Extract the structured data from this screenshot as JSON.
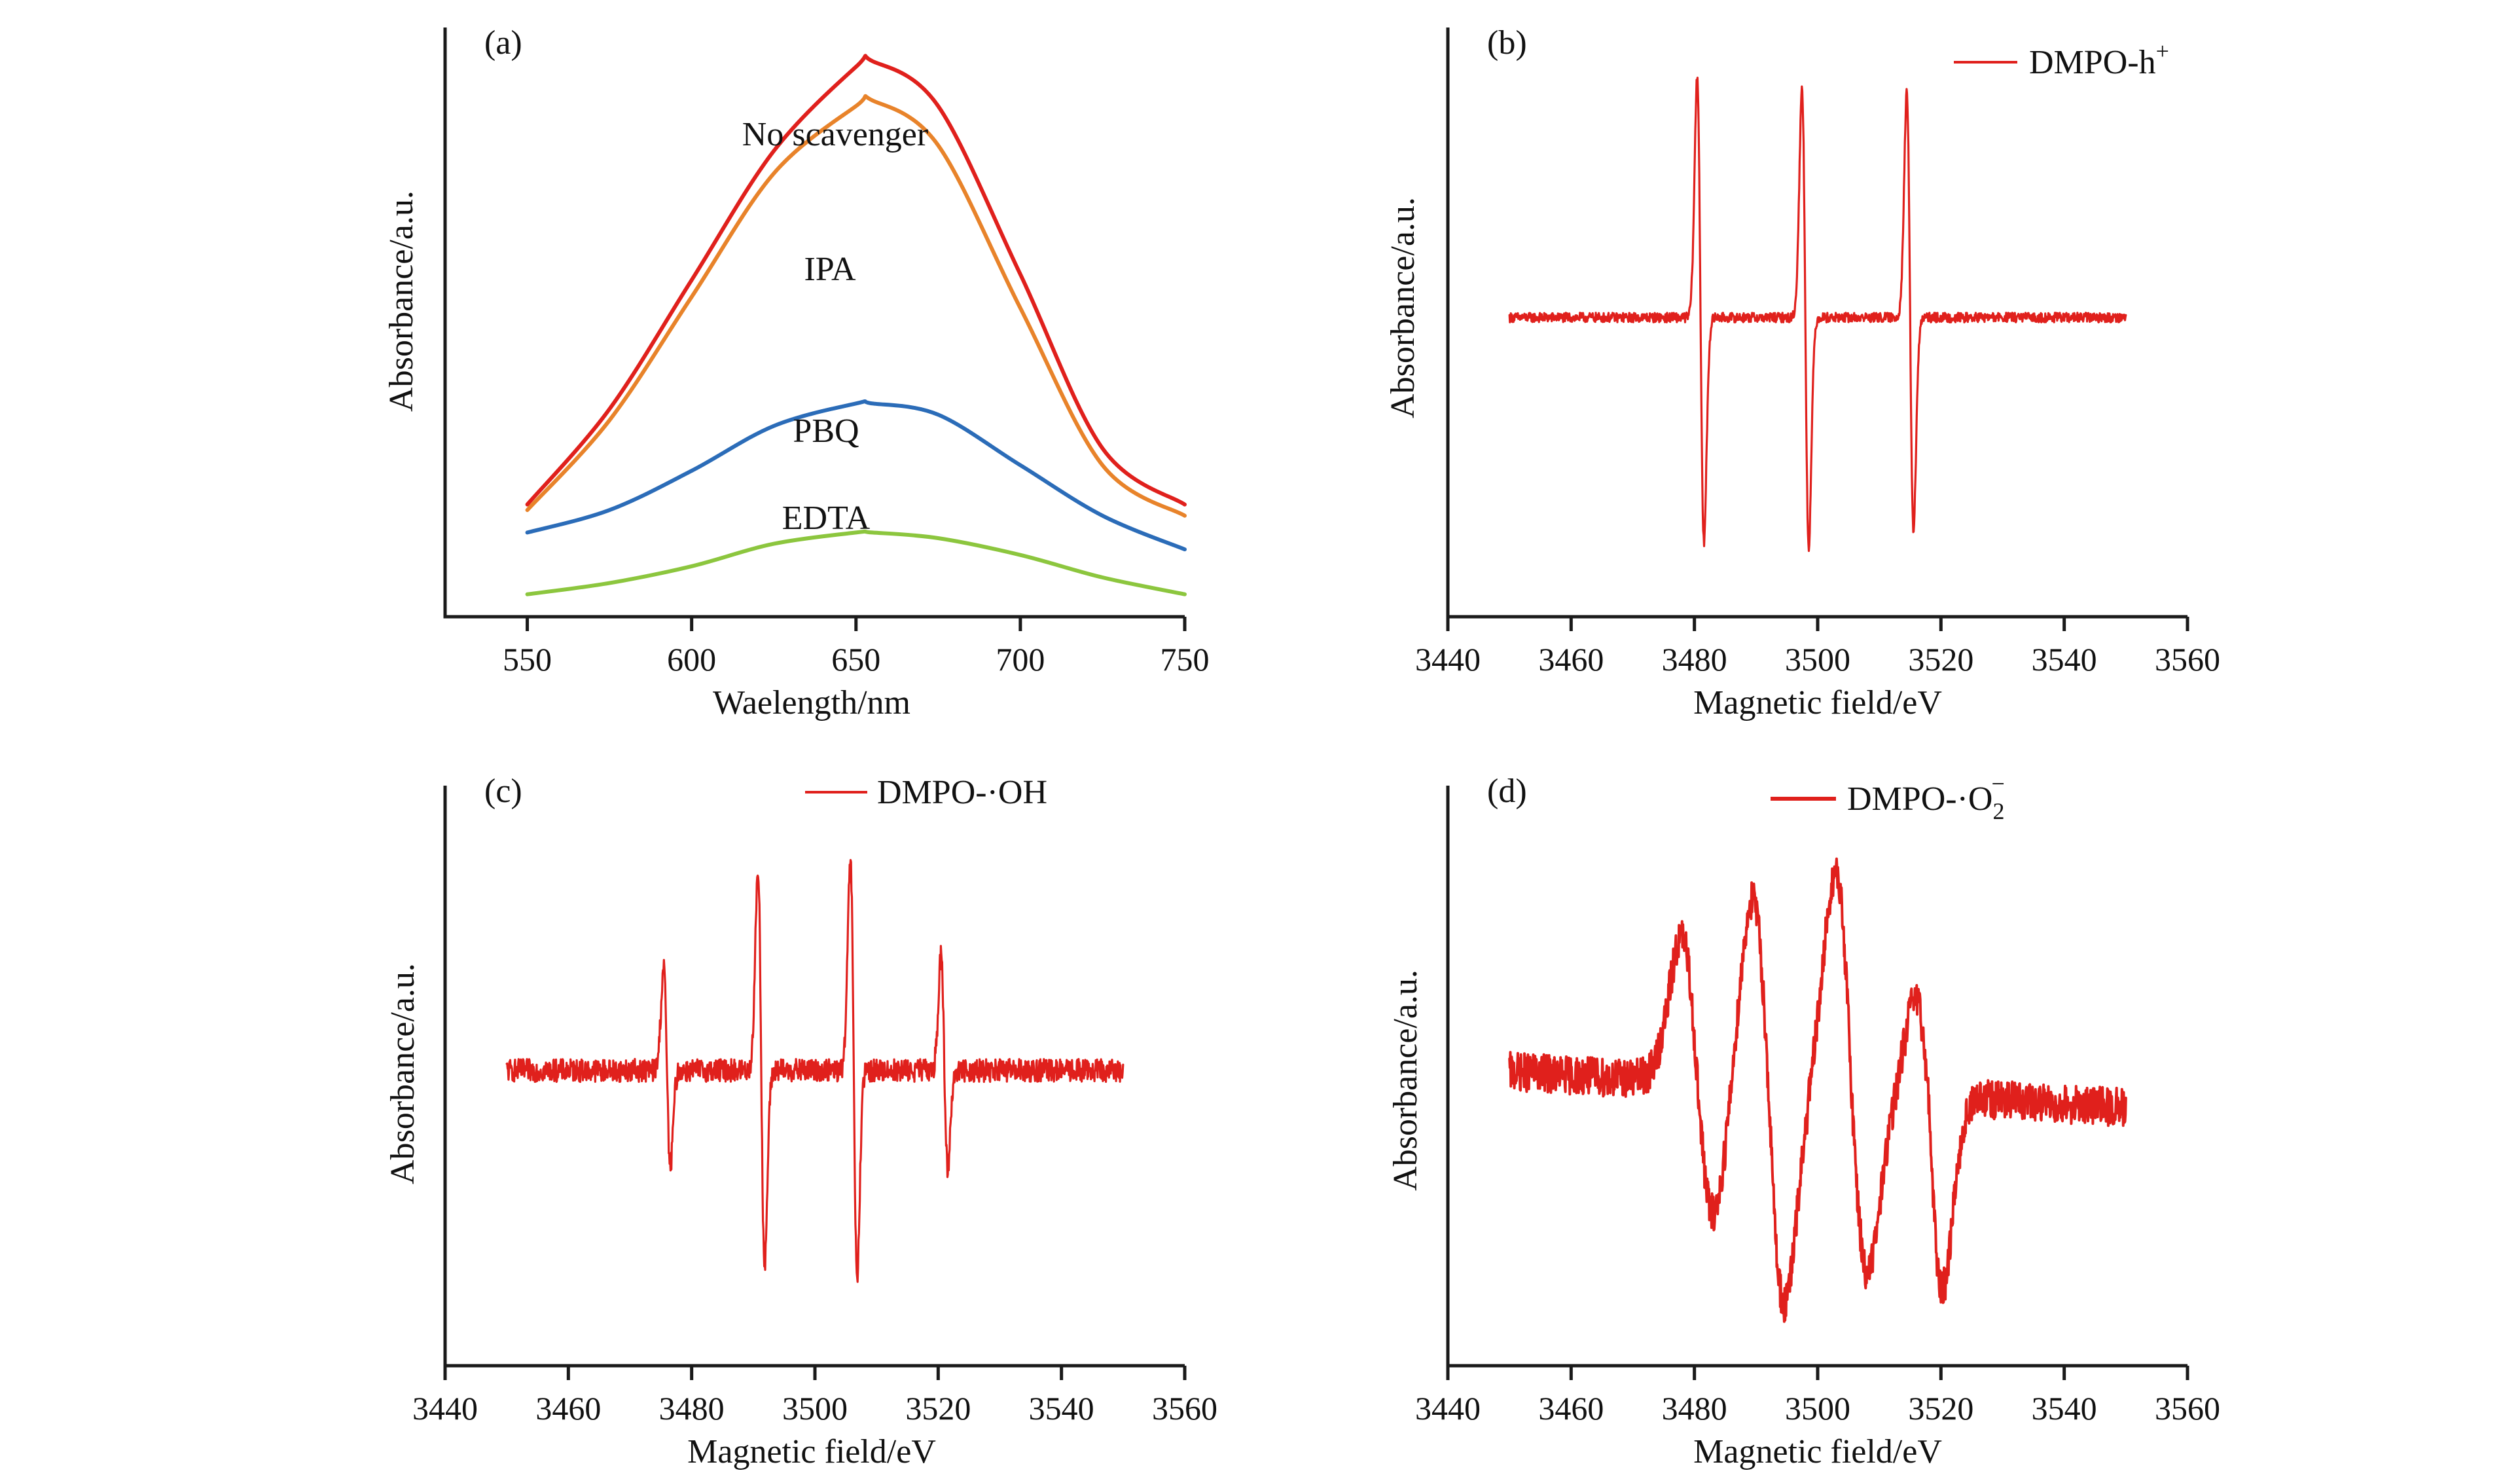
{
  "chart_data": [
    {
      "type": "line",
      "panel_label": "(a)",
      "xlabel": "Waelength/nm",
      "ylabel": "Absorbance/a.u.",
      "xlim": [
        525,
        750
      ],
      "ylim": [
        0,
        1.05
      ],
      "xticks": [
        550,
        600,
        650,
        700,
        750
      ],
      "grid": false,
      "series": [
        {
          "name": "No scavenger",
          "color": "#e0201c",
          "x": [
            550,
            575,
            600,
            625,
            650,
            655,
            675,
            700,
            725,
            750
          ],
          "y": [
            0.2,
            0.37,
            0.6,
            0.83,
            0.98,
            0.99,
            0.91,
            0.61,
            0.3,
            0.2
          ]
        },
        {
          "name": "IPA",
          "color": "#e8832a",
          "x": [
            550,
            575,
            600,
            625,
            650,
            655,
            675,
            700,
            725,
            750
          ],
          "y": [
            0.19,
            0.35,
            0.57,
            0.79,
            0.91,
            0.92,
            0.84,
            0.55,
            0.27,
            0.18
          ]
        },
        {
          "name": "PBQ",
          "color": "#2b6cb8",
          "x": [
            550,
            575,
            600,
            625,
            650,
            655,
            675,
            700,
            725,
            750
          ],
          "y": [
            0.15,
            0.19,
            0.26,
            0.34,
            0.38,
            0.38,
            0.36,
            0.27,
            0.18,
            0.12
          ]
        },
        {
          "name": "EDTA",
          "color": "#8cc63e",
          "x": [
            550,
            575,
            600,
            625,
            650,
            655,
            675,
            700,
            725,
            750
          ],
          "y": [
            0.04,
            0.06,
            0.09,
            0.13,
            0.15,
            0.15,
            0.14,
            0.11,
            0.07,
            0.04
          ]
        }
      ]
    },
    {
      "type": "line",
      "panel_label": "(b)",
      "xlabel": "Magnetic field/eV",
      "ylabel": "Absorbance/a.u.",
      "xlim": [
        3440,
        3560
      ],
      "ylim": [
        -1.1,
        1.1
      ],
      "xticks": [
        3440,
        3460,
        3480,
        3500,
        3520,
        3540,
        3560
      ],
      "grid": false,
      "series": [
        {
          "name": "DMPO-h+",
          "color": "#e0201c",
          "x_range": [
            3450,
            3550
          ],
          "baseline": 0,
          "noise": 0.02,
          "peaks": [
            {
              "center": 3481.0,
              "max": 1.0,
              "min": -0.93,
              "width": 0.55
            },
            {
              "center": 3498.0,
              "max": 0.95,
              "min": -0.95,
              "width": 0.55
            },
            {
              "center": 3515.0,
              "max": 0.93,
              "min": -0.88,
              "width": 0.55
            }
          ]
        }
      ]
    },
    {
      "type": "line",
      "panel_label": "(c)",
      "xlabel": "Magnetic field/eV",
      "ylabel": "Absorbance/a.u.",
      "xlim": [
        3440,
        3560
      ],
      "ylim": [
        -1.1,
        1.1
      ],
      "xticks": [
        3440,
        3460,
        3480,
        3500,
        3520,
        3540,
        3560
      ],
      "grid": false,
      "series": [
        {
          "name": "DMPO-·OH",
          "color": "#e0201c",
          "x_range": [
            3450,
            3550
          ],
          "baseline": 0,
          "noise": 0.05,
          "peaks": [
            {
              "center": 3476.0,
              "max": 0.45,
              "min": -0.42,
              "width": 0.55
            },
            {
              "center": 3491.3,
              "max": 0.88,
              "min": -0.86,
              "width": 0.55
            },
            {
              "center": 3506.3,
              "max": 0.92,
              "min": -0.9,
              "width": 0.55
            },
            {
              "center": 3521.0,
              "max": 0.5,
              "min": -0.42,
              "width": 0.55
            }
          ]
        }
      ]
    },
    {
      "type": "line",
      "panel_label": "(d)",
      "xlabel": "Magnetic field/eV",
      "ylabel": "Absorbance/a.u.",
      "xlim": [
        3440,
        3560
      ],
      "ylim": [
        -1.1,
        1.1
      ],
      "xticks": [
        3440,
        3460,
        3480,
        3500,
        3520,
        3540,
        3560
      ],
      "grid": false,
      "series": [
        {
          "name": "DMPO-·O2−",
          "color": "#e0201c",
          "x_range": [
            3450,
            3550
          ],
          "baseline_left": 0.05,
          "baseline_right": -0.1,
          "noise": 0.08,
          "peaks": [
            {
              "center": 3480.5,
              "max": 0.6,
              "min": -0.55,
              "width": 2.6
            },
            {
              "center": 3492.0,
              "max": 0.78,
              "min": -0.9,
              "width": 2.6
            },
            {
              "center": 3505.5,
              "max": 0.9,
              "min": -0.75,
              "width": 2.6
            },
            {
              "center": 3518.0,
              "max": 0.4,
              "min": -0.8,
              "width": 2.2
            }
          ]
        }
      ]
    }
  ]
}
